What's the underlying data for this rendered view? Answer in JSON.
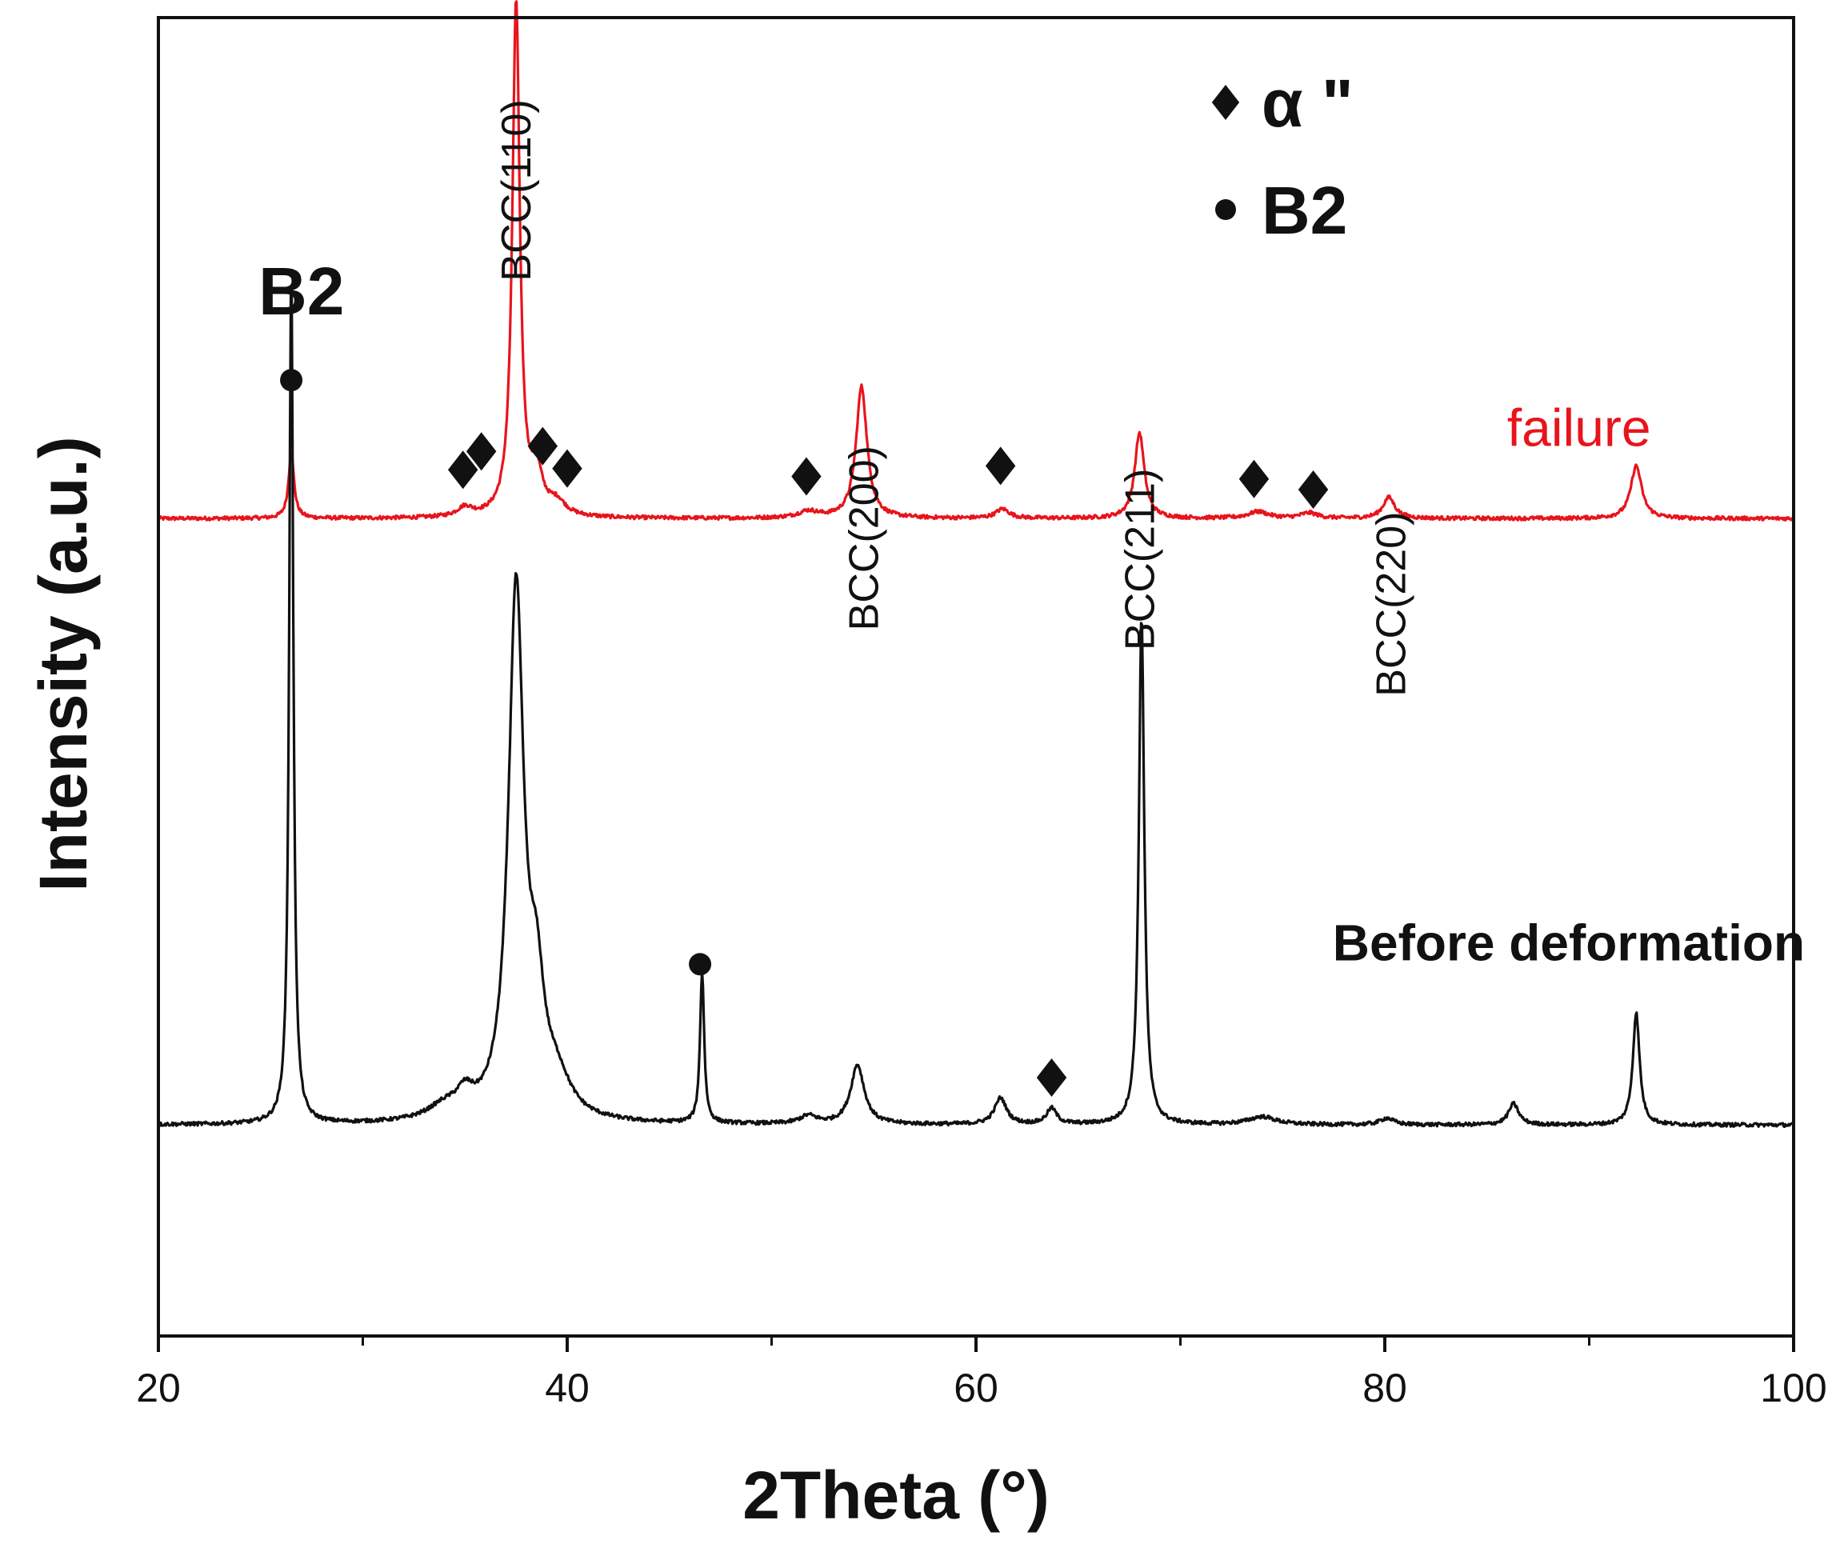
{
  "chart_data": {
    "type": "line",
    "title": "",
    "xlabel": "2Theta (°)",
    "ylabel": "Intensity (a.u.)",
    "xlim": [
      20,
      100
    ],
    "ylim": [
      0,
      100
    ],
    "x_ticks": [
      20,
      40,
      60,
      80,
      100
    ],
    "x_minor_ticks": [
      30,
      50,
      70,
      90
    ],
    "y_ticks_shown": false,
    "colors": {
      "failure": "#e8141c",
      "before": "#111111",
      "axis": "#111111"
    },
    "baselines": {
      "failure": 62.0,
      "before": 16.0
    },
    "series": [
      {
        "name": "failure",
        "label": "failure",
        "color": "#e8141c",
        "baseline": 62.0,
        "peaks": [
          {
            "x": 26.5,
            "h": 5.0,
            "w": 0.16
          },
          {
            "x": 35.0,
            "h": 0.7,
            "w": 0.45
          },
          {
            "x": 37.5,
            "h": 39.0,
            "w": 0.22
          },
          {
            "x": 38.5,
            "h": 3.0,
            "w": 0.35
          },
          {
            "x": 39.5,
            "h": 1.0,
            "w": 0.5
          },
          {
            "x": 51.8,
            "h": 0.5,
            "w": 0.6
          },
          {
            "x": 54.4,
            "h": 10.0,
            "w": 0.32
          },
          {
            "x": 61.3,
            "h": 0.7,
            "w": 0.4
          },
          {
            "x": 68.0,
            "h": 6.5,
            "w": 0.28
          },
          {
            "x": 73.8,
            "h": 0.5,
            "w": 0.6
          },
          {
            "x": 76.3,
            "h": 0.4,
            "w": 0.5
          },
          {
            "x": 80.2,
            "h": 1.6,
            "w": 0.35
          },
          {
            "x": 92.3,
            "h": 4.0,
            "w": 0.32
          }
        ]
      },
      {
        "name": "Before deformation",
        "label": "Before deformation",
        "color": "#111111",
        "baseline": 16.0,
        "peaks": [
          {
            "x": 26.5,
            "h": 65.0,
            "w": 0.12
          },
          {
            "x": 34.0,
            "h": 1.0,
            "w": 1.0
          },
          {
            "x": 35.0,
            "h": 1.5,
            "w": 0.5
          },
          {
            "x": 37.5,
            "h": 40.0,
            "w": 0.45
          },
          {
            "x": 38.5,
            "h": 8.0,
            "w": 0.45
          },
          {
            "x": 39.5,
            "h": 2.5,
            "w": 0.8
          },
          {
            "x": 46.6,
            "h": 11.5,
            "w": 0.12
          },
          {
            "x": 51.8,
            "h": 0.6,
            "w": 0.5
          },
          {
            "x": 54.2,
            "h": 4.5,
            "w": 0.4
          },
          {
            "x": 61.2,
            "h": 2.0,
            "w": 0.35
          },
          {
            "x": 63.7,
            "h": 1.2,
            "w": 0.3
          },
          {
            "x": 68.1,
            "h": 38.5,
            "w": 0.16
          },
          {
            "x": 74.0,
            "h": 0.6,
            "w": 0.8
          },
          {
            "x": 80.1,
            "h": 0.5,
            "w": 0.4
          },
          {
            "x": 86.3,
            "h": 1.6,
            "w": 0.3
          },
          {
            "x": 92.3,
            "h": 8.5,
            "w": 0.2
          }
        ]
      }
    ],
    "peak_labels": [
      {
        "x": 37.5,
        "y": 80.0,
        "text": "BCC(110)"
      },
      {
        "x": 54.5,
        "y": 53.5,
        "text": "BCC(200)"
      },
      {
        "x": 68.0,
        "y": 52.0,
        "text": "BCC(211)"
      },
      {
        "x": 80.3,
        "y": 48.5,
        "text": "BCC(220)"
      }
    ],
    "markers": [
      {
        "shape": "circle",
        "x": 26.5,
        "y": 72.5
      },
      {
        "shape": "circle",
        "x": 46.5,
        "y": 28.2
      },
      {
        "shape": "diamond",
        "x": 34.9,
        "y": 65.7
      },
      {
        "shape": "diamond",
        "x": 35.8,
        "y": 67.1
      },
      {
        "shape": "diamond",
        "x": 38.8,
        "y": 67.5
      },
      {
        "shape": "diamond",
        "x": 40.0,
        "y": 65.8
      },
      {
        "shape": "diamond",
        "x": 51.7,
        "y": 65.2
      },
      {
        "shape": "diamond",
        "x": 61.2,
        "y": 66.0
      },
      {
        "shape": "diamond",
        "x": 73.6,
        "y": 65.0
      },
      {
        "shape": "diamond",
        "x": 76.5,
        "y": 64.2
      },
      {
        "shape": "diamond",
        "x": 63.7,
        "y": 19.6
      }
    ],
    "annotations": [
      {
        "text": "B2",
        "x": 27.0,
        "y": 77.5,
        "kind": "peak-phase"
      },
      {
        "text": "failure",
        "x": 89.5,
        "y": 67.5,
        "kind": "series-failure"
      },
      {
        "text": "Before deformation",
        "x": 89.0,
        "y": 28.5,
        "kind": "series-before"
      }
    ],
    "legend": {
      "position": "top-right",
      "entries": [
        {
          "symbol": "diamond",
          "label": "α \""
        },
        {
          "symbol": "circle",
          "label": "B2"
        }
      ]
    }
  }
}
